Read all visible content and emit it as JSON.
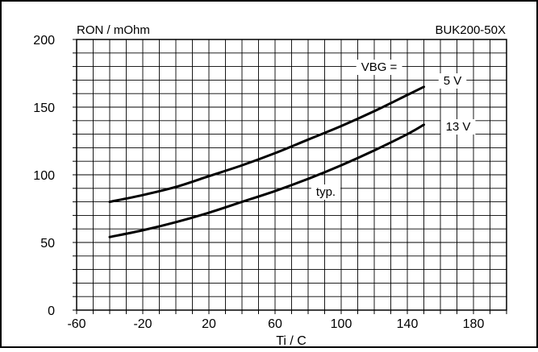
{
  "chart_data": {
    "type": "line",
    "title_left": "RON / mOhm",
    "title_right": "BUK200-50X",
    "xlabel": "Ti / C",
    "xlim": [
      -60,
      200
    ],
    "ylim": [
      0,
      200
    ],
    "x_ticks": [
      -60,
      -20,
      20,
      60,
      100,
      140,
      180
    ],
    "x_tick_labels": [
      "-60",
      "-20",
      "20",
      "60",
      "100",
      "140",
      "180"
    ],
    "y_ticks": [
      0,
      50,
      100,
      150,
      200
    ],
    "y_tick_labels": [
      "0",
      "50",
      "100",
      "150",
      "200"
    ],
    "x_minor_step": 10,
    "y_minor_step": 10,
    "grid": true,
    "legend_header": "VBG =",
    "annotation": "typ.",
    "series": [
      {
        "name": "5 V",
        "x": [
          -40,
          -20,
          0,
          20,
          40,
          60,
          80,
          100,
          120,
          140,
          150
        ],
        "y": [
          80,
          85,
          91,
          99,
          107,
          116,
          126,
          136,
          147,
          159,
          165
        ]
      },
      {
        "name": "13 V",
        "x": [
          -40,
          -20,
          0,
          20,
          40,
          60,
          80,
          100,
          120,
          140,
          150
        ],
        "y": [
          54,
          59,
          65,
          72,
          80,
          88,
          97,
          107,
          118,
          130,
          137
        ]
      }
    ]
  }
}
